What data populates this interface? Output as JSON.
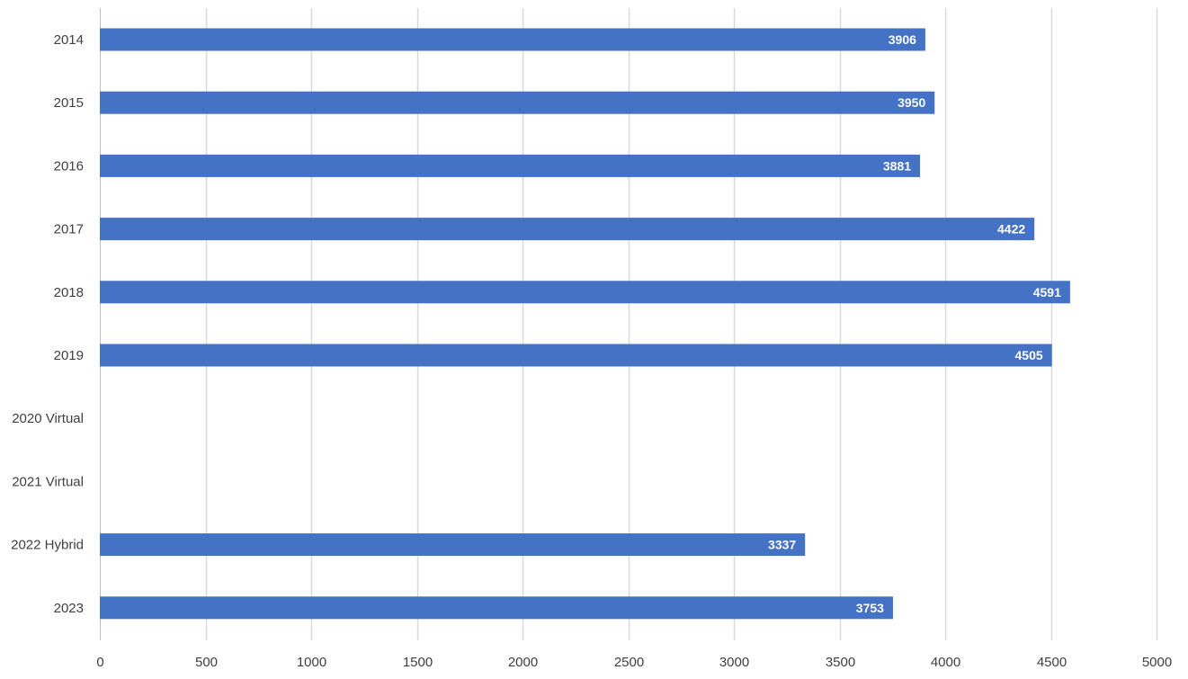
{
  "chart_data": {
    "type": "bar",
    "orientation": "horizontal",
    "title": "",
    "xlabel": "",
    "ylabel": "",
    "categories": [
      "2014",
      "2015",
      "2016",
      "2017",
      "2018",
      "2019",
      "2020 Virtual",
      "2021 Virtual",
      "2022 Hybrid",
      "2023"
    ],
    "values": [
      3906,
      3950,
      3881,
      4422,
      4591,
      4505,
      null,
      null,
      3337,
      3753
    ],
    "xlim": [
      0,
      5000
    ],
    "x_ticks": [
      "0",
      "500",
      "1000",
      "1500",
      "2000",
      "2500",
      "3000",
      "3500",
      "4000",
      "4500",
      "5000"
    ],
    "x_tick_values": [
      0,
      500,
      1000,
      1500,
      2000,
      2500,
      3000,
      3500,
      4000,
      4500,
      5000
    ],
    "grid": "vertical",
    "legend": "none",
    "data_labels": "inside-end",
    "colors": {
      "bar": "#4472c4",
      "gridline": "#d9d9d9",
      "text": "#404040",
      "data_label": "#ffffff"
    }
  }
}
